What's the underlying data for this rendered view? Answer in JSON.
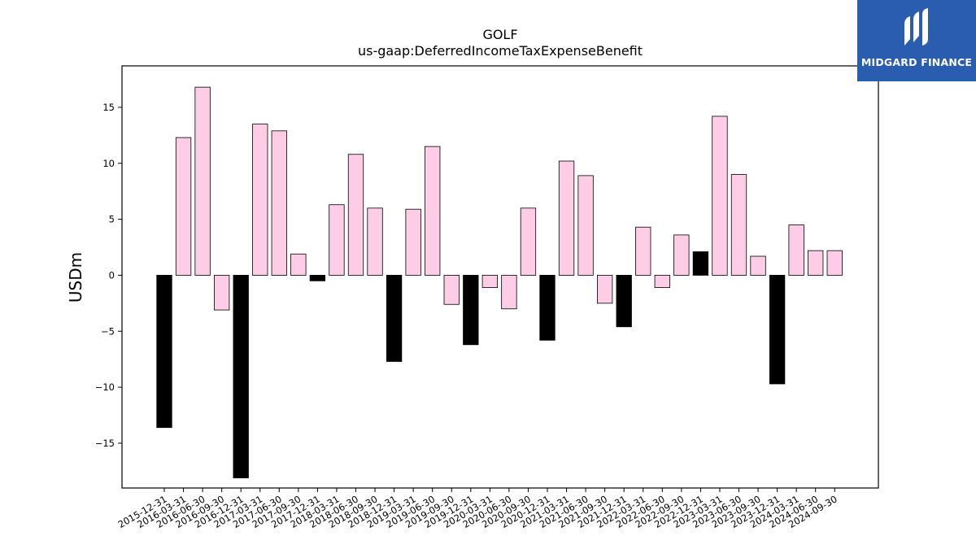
{
  "chart_data": {
    "type": "bar",
    "title": "GOLF",
    "subtitle": "us-gaap:DeferredIncomeTaxExpenseBenefit",
    "xlabel": "",
    "ylabel": "USDm",
    "ylim": [
      -19,
      18.7
    ],
    "yticks": [
      -15,
      -10,
      -5,
      0,
      5,
      10,
      15
    ],
    "grid": false,
    "categories": [
      "2015-12-31",
      "2016-03-31",
      "2016-06-30",
      "2016-09-30",
      "2016-12-31",
      "2017-03-31",
      "2017-06-30",
      "2017-09-30",
      "2017-12-31",
      "2018-03-31",
      "2018-06-30",
      "2018-09-30",
      "2018-12-31",
      "2019-03-31",
      "2019-06-30",
      "2019-09-30",
      "2019-12-31",
      "2020-03-31",
      "2020-06-30",
      "2020-09-30",
      "2020-12-31",
      "2021-03-31",
      "2021-06-30",
      "2021-09-30",
      "2021-12-31",
      "2022-03-31",
      "2022-06-30",
      "2022-09-30",
      "2022-12-31",
      "2023-03-31",
      "2023-06-30",
      "2023-09-30",
      "2023-12-31",
      "2024-03-31",
      "2024-06-30",
      "2024-09-30"
    ],
    "values": [
      -13.6,
      12.3,
      16.8,
      -3.1,
      -18.1,
      13.5,
      12.9,
      1.9,
      -0.5,
      6.3,
      10.8,
      6.0,
      -7.7,
      5.9,
      11.5,
      -2.6,
      -6.2,
      -1.1,
      -3.0,
      6.0,
      -5.8,
      10.2,
      8.9,
      -2.5,
      -4.6,
      4.3,
      -1.1,
      3.6,
      2.1,
      14.2,
      9.0,
      1.7,
      -9.7,
      4.5,
      2.2,
      2.2
    ],
    "highlighted": [
      true,
      false,
      false,
      false,
      true,
      false,
      false,
      false,
      true,
      false,
      false,
      false,
      true,
      false,
      false,
      false,
      true,
      false,
      false,
      false,
      true,
      false,
      false,
      false,
      true,
      false,
      false,
      false,
      true,
      false,
      false,
      false,
      true,
      false,
      false,
      false
    ],
    "colors": {
      "quarter": "#fccde5",
      "year_end": "#000000",
      "edge": "#000000"
    }
  },
  "logo": {
    "text": "MIDGARD FINANCE",
    "bg": "#2a5cb0",
    "icon": "midgard-logo-icon"
  }
}
